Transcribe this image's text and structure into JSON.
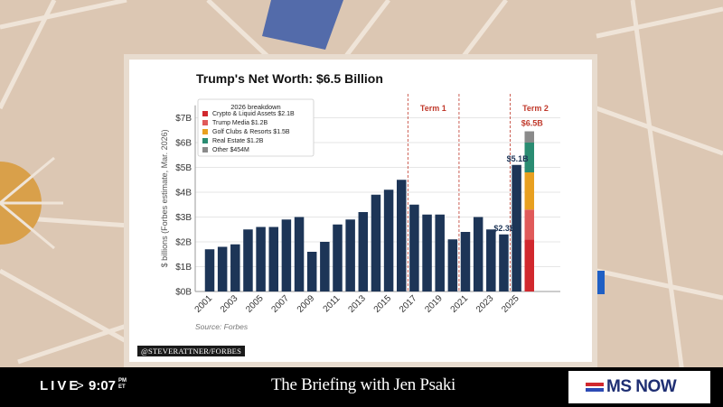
{
  "chart_data": {
    "type": "bar",
    "title": "Trump's Net Worth: $6.5 Billion",
    "ylabel": "$ billions (Forbes estimate, Mar. 2026)",
    "xlabel": "",
    "ylim": [
      0,
      7.5
    ],
    "yticks": [
      0,
      1,
      2,
      3,
      4,
      5,
      6,
      7
    ],
    "ytick_labels": [
      "$0B",
      "$1B",
      "$2B",
      "$3B",
      "$4B",
      "$5B",
      "$6B",
      "$7B"
    ],
    "xtick_labels": [
      "2001",
      "2003",
      "2005",
      "2007",
      "2009",
      "2011",
      "2013",
      "2015",
      "2017",
      "2019",
      "2021",
      "2023",
      "2025"
    ],
    "grid": "horizontal",
    "categories": [
      2001,
      2002,
      2003,
      2004,
      2005,
      2006,
      2007,
      2008,
      2009,
      2010,
      2011,
      2012,
      2013,
      2014,
      2015,
      2016,
      2017,
      2018,
      2019,
      2020,
      2021,
      2022,
      2023,
      2024,
      2025
    ],
    "values": [
      1.7,
      1.8,
      1.9,
      2.5,
      2.6,
      2.6,
      2.9,
      3.0,
      1.6,
      2.0,
      2.7,
      2.9,
      3.2,
      3.9,
      4.1,
      4.5,
      3.5,
      3.1,
      3.1,
      2.1,
      2.4,
      3.0,
      2.5,
      2.3,
      5.1
    ],
    "bar_color": "#1d3557",
    "stacked_2026": {
      "label": "$6.5B",
      "label_color": "#c0392b",
      "segments": [
        {
          "name": "Crypto & Liquid Assets",
          "value": 2.1,
          "color": "#d1282e"
        },
        {
          "name": "Trump Media",
          "value": 1.2,
          "color": "#e05a5a"
        },
        {
          "name": "Golf Clubs & Resorts",
          "value": 1.5,
          "color": "#e8a020"
        },
        {
          "name": "Real Estate",
          "value": 1.2,
          "color": "#2a8c72"
        },
        {
          "name": "Other",
          "value": 0.454,
          "color": "#8a8a8a"
        }
      ]
    },
    "legend": {
      "title": "2026 breakdown",
      "placement": "top-left",
      "entries": [
        "Crypto & Liquid Assets  $2.1B",
        "Trump Media  $1.2B",
        "Golf Clubs & Resorts  $1.5B",
        "Real Estate  $1.2B",
        "Other  $454M"
      ]
    },
    "annotations": [
      {
        "text": "$2.3B",
        "x": 2024,
        "y": 2.3
      },
      {
        "text": "$5.1B",
        "x": 2025,
        "y": 5.1
      }
    ],
    "term_lines": [
      {
        "x": 2016.5,
        "label": "Term 1"
      },
      {
        "x": 2020.5,
        "label": ""
      },
      {
        "x": 2024.5,
        "label": "Term 2"
      }
    ],
    "term_color": "#c0392b",
    "source": "Source: Forbes"
  },
  "credit": "@STEVERATTNER/FORBES",
  "lower_third": {
    "live": "LIVE",
    "arrow": ">",
    "time": "9:07",
    "ampm": "PM",
    "tz": "ET",
    "show_title": "The Briefing with Jen Psaki",
    "network": "MS NOW"
  }
}
